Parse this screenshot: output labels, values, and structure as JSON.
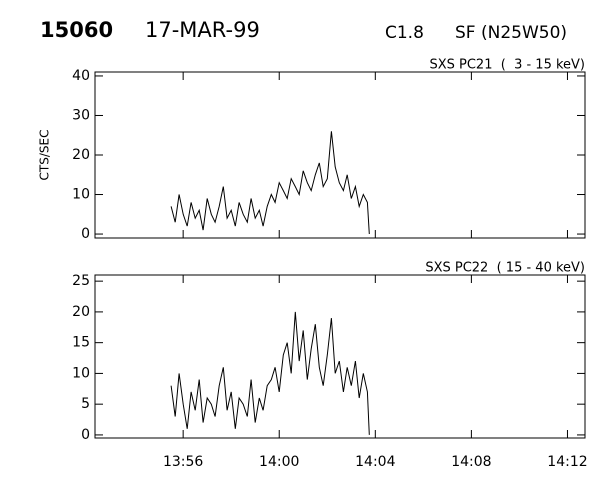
{
  "header": {
    "event": "15060",
    "date": "17-MAR-99",
    "class": "C1.8",
    "location": "SF (N25W50)"
  },
  "chart_data": [
    {
      "type": "line",
      "title": "SXS PC21  (  3 - 15 keV)",
      "y_label": "CTS/SEC",
      "x": [
        835.5,
        835.67,
        835.83,
        836,
        836.17,
        836.33,
        836.5,
        836.67,
        836.83,
        837,
        837.17,
        837.33,
        837.5,
        837.67,
        837.83,
        838,
        838.17,
        838.33,
        838.5,
        838.67,
        838.83,
        839,
        839.17,
        839.33,
        839.5,
        839.67,
        839.83,
        840,
        840.17,
        840.33,
        840.5,
        840.67,
        840.83,
        841,
        841.17,
        841.33,
        841.5,
        841.67,
        841.83,
        842,
        842.17,
        842.33,
        842.5,
        842.67,
        842.83,
        843,
        843.17,
        843.33,
        843.5,
        843.67,
        843.75
      ],
      "series": [
        {
          "color": "#000000",
          "values": [
            7,
            3,
            10,
            5,
            2,
            8,
            4,
            6,
            1,
            9,
            5,
            3,
            7,
            12,
            4,
            6,
            2,
            8,
            5,
            3,
            9,
            4,
            6,
            2,
            7,
            10,
            8,
            13,
            11,
            9,
            14,
            12,
            10,
            16,
            13,
            11,
            15,
            18,
            12,
            14,
            26,
            17,
            13,
            11,
            15,
            9,
            12,
            7,
            10,
            8,
            0
          ]
        }
      ],
      "ylim": [
        -1,
        41
      ],
      "yticks": [
        0,
        10,
        20,
        30,
        40
      ]
    },
    {
      "type": "line",
      "title": "SXS PC22  ( 15 - 40 keV)",
      "x": [
        835.5,
        835.67,
        835.83,
        836,
        836.17,
        836.33,
        836.5,
        836.67,
        836.83,
        837,
        837.17,
        837.33,
        837.5,
        837.67,
        837.83,
        838,
        838.17,
        838.33,
        838.5,
        838.67,
        838.83,
        839,
        839.17,
        839.33,
        839.5,
        839.67,
        839.83,
        840,
        840.17,
        840.33,
        840.5,
        840.67,
        840.83,
        841,
        841.17,
        841.33,
        841.5,
        841.67,
        841.83,
        842,
        842.17,
        842.33,
        842.5,
        842.67,
        842.83,
        843,
        843.17,
        843.33,
        843.5,
        843.67,
        843.75
      ],
      "series": [
        {
          "color": "#000000",
          "values": [
            8,
            3,
            10,
            5,
            1,
            7,
            4,
            9,
            2,
            6,
            5,
            3,
            8,
            11,
            4,
            7,
            1,
            6,
            5,
            3,
            9,
            2,
            6,
            4,
            8,
            9,
            11,
            7,
            13,
            15,
            10,
            20,
            12,
            17,
            9,
            14,
            18,
            11,
            8,
            13,
            19,
            10,
            12,
            7,
            11,
            8,
            12,
            6,
            10,
            7,
            0
          ]
        }
      ],
      "ylim": [
        -0.5,
        26
      ],
      "yticks": [
        0,
        5,
        10,
        15,
        20,
        25
      ],
      "xlim": [
        832.33,
        852.73
      ],
      "xticks": [
        {
          "value": 836,
          "label": "13:56"
        },
        {
          "value": 840,
          "label": "14:00"
        },
        {
          "value": 844,
          "label": "14:04"
        },
        {
          "value": 848,
          "label": "14:08"
        },
        {
          "value": 852,
          "label": "14:12"
        }
      ]
    }
  ]
}
